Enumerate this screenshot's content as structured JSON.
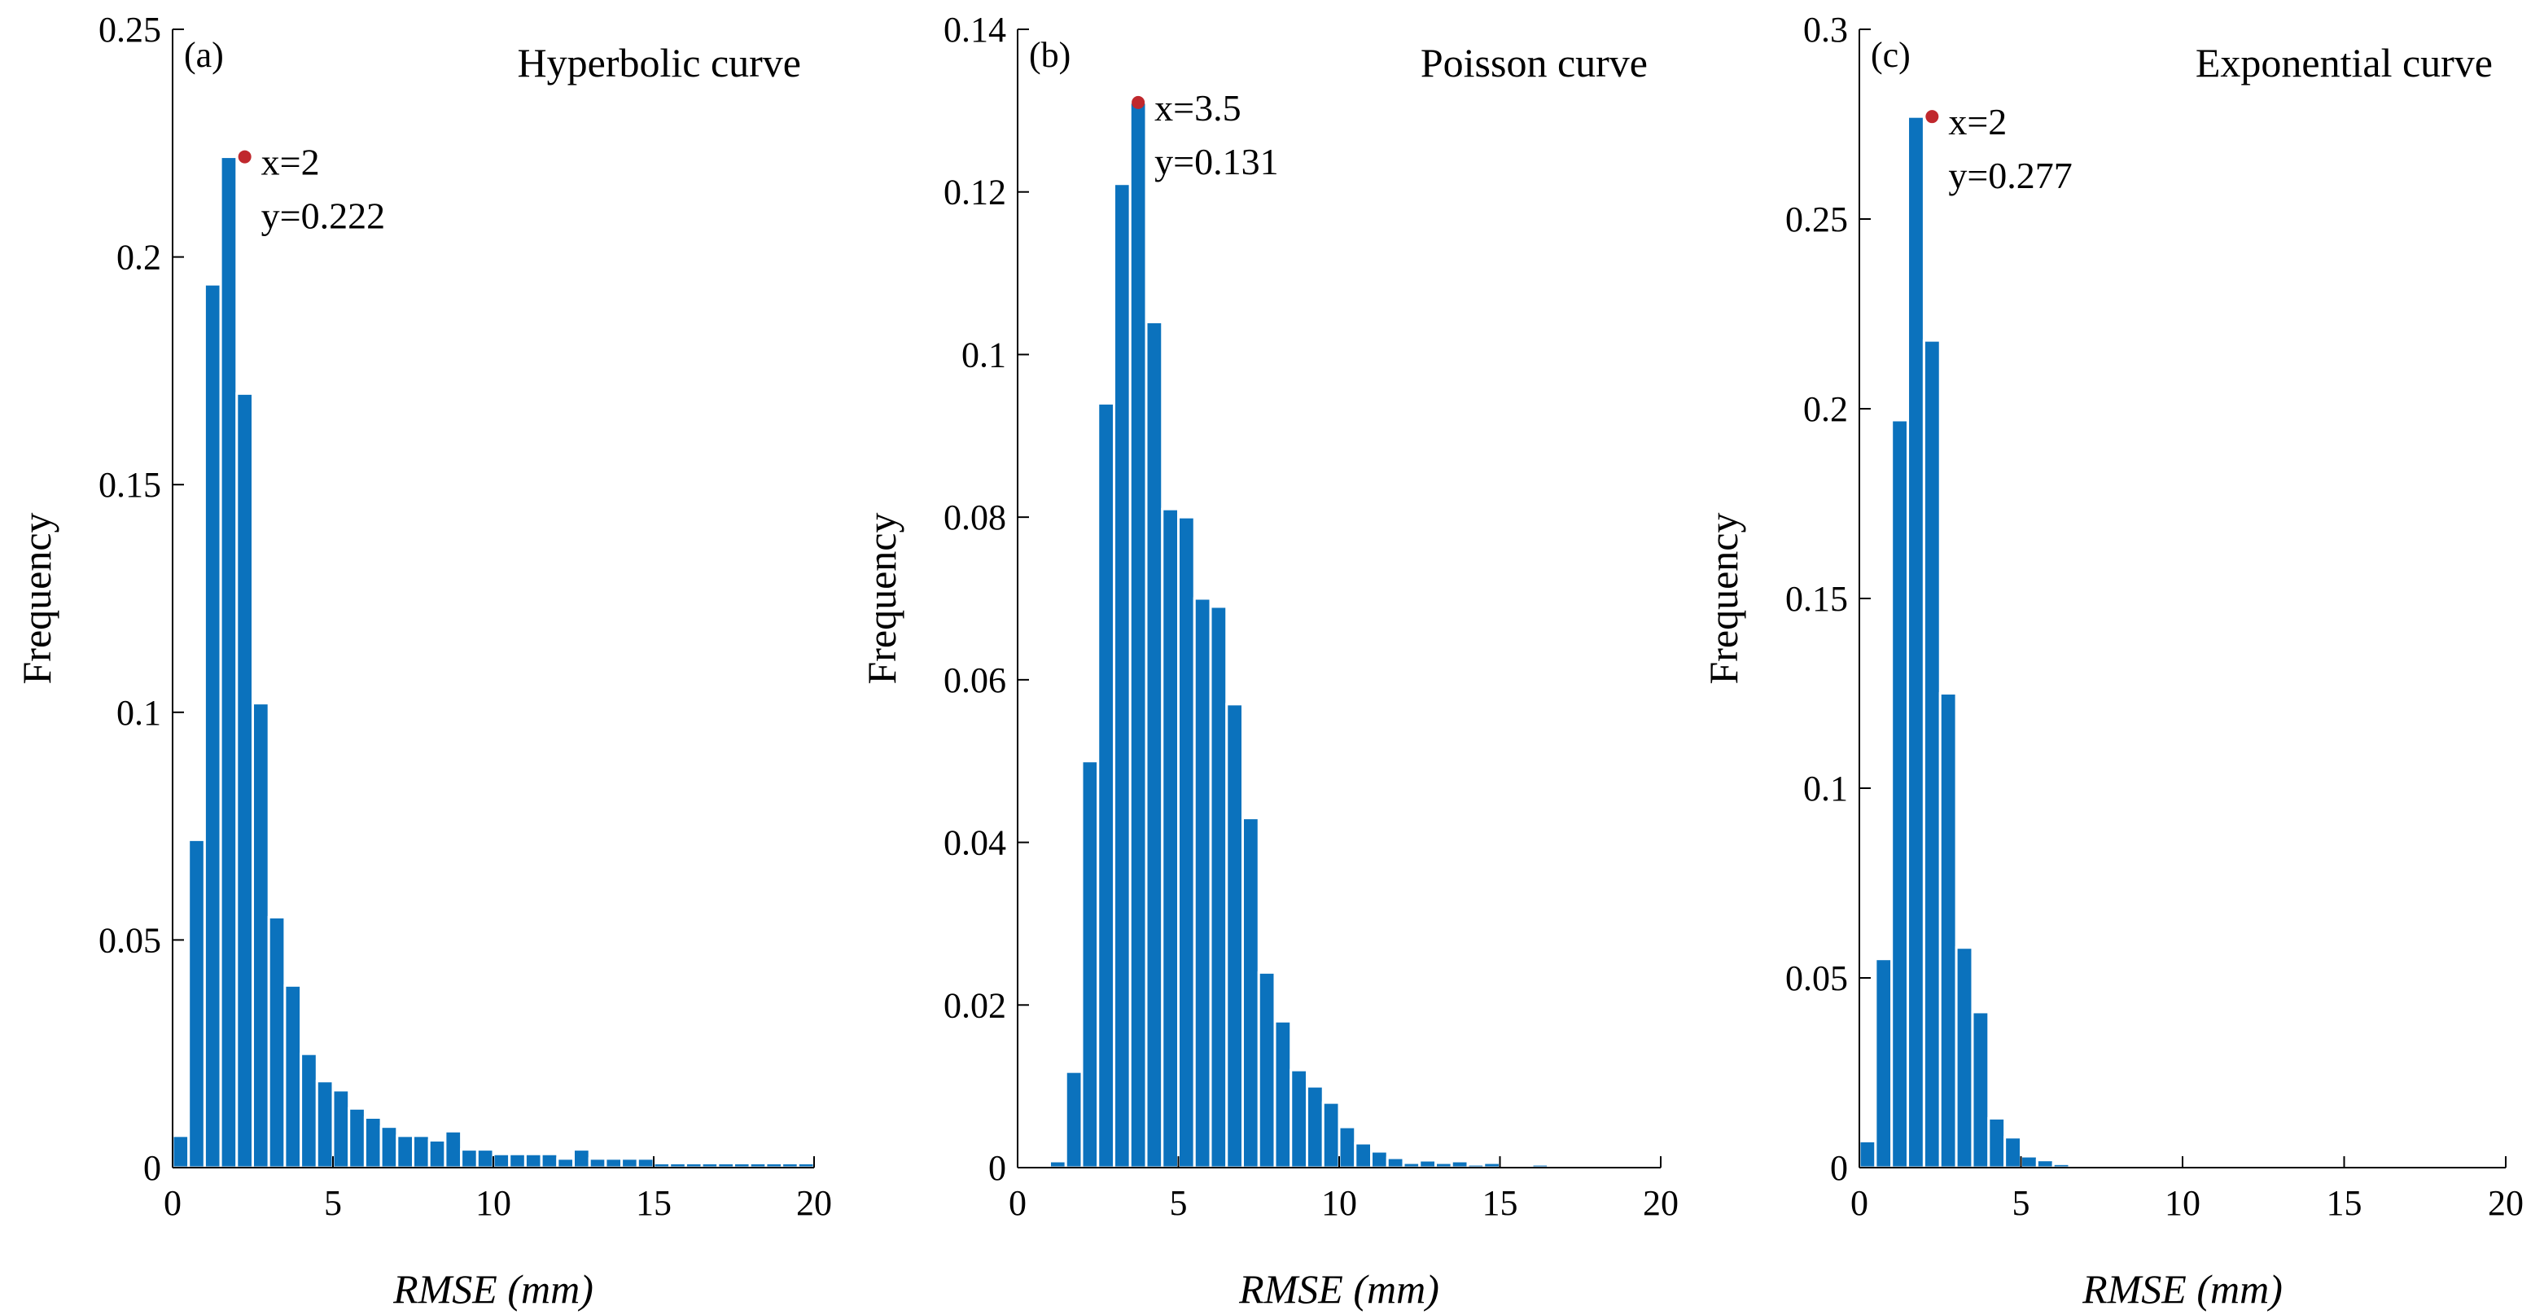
{
  "chart_data": [
    {
      "type": "bar",
      "tag": "(a)",
      "title": "Hyperbolic curve",
      "xlabel": "RMSE (mm)",
      "ylabel": "Frequency",
      "xlim": [
        0,
        20
      ],
      "ylim": [
        0,
        0.25
      ],
      "xticks": [
        "0",
        "5",
        "10",
        "15",
        "20"
      ],
      "yticks": [
        "0",
        "0.05",
        "0.1",
        "0.15",
        "0.2",
        "0.25"
      ],
      "bin_width": 0.5,
      "bin_start": 0,
      "values": [
        0.007,
        0.072,
        0.194,
        0.222,
        0.17,
        0.102,
        0.055,
        0.04,
        0.025,
        0.019,
        0.017,
        0.013,
        0.011,
        0.009,
        0.007,
        0.007,
        0.006,
        0.008,
        0.004,
        0.004,
        0.003,
        0.003,
        0.003,
        0.003,
        0.002,
        0.004,
        0.002,
        0.002,
        0.002,
        0.002,
        0.001,
        0.001,
        0.001,
        0.001,
        0.001,
        0.001,
        0.001,
        0.001,
        0.001,
        0.001
      ],
      "peak": {
        "x": 2,
        "y": 0.222,
        "label_x": "x=2",
        "label_y": "y=0.222"
      }
    },
    {
      "type": "bar",
      "tag": "(b)",
      "title": "Poisson curve",
      "xlabel": "RMSE (mm)",
      "ylabel": "Frequency",
      "xlim": [
        0,
        20
      ],
      "ylim": [
        0,
        0.14
      ],
      "xticks": [
        "0",
        "5",
        "10",
        "15",
        "20"
      ],
      "yticks": [
        "0",
        "0.02",
        "0.04",
        "0.06",
        "0.08",
        "0.1",
        "0.12",
        "0.14"
      ],
      "bin_width": 0.5,
      "bin_start": 0,
      "values": [
        0,
        0.0003,
        0.0008,
        0.0118,
        0.05,
        0.094,
        0.121,
        0.131,
        0.104,
        0.081,
        0.08,
        0.07,
        0.069,
        0.057,
        0.043,
        0.024,
        0.018,
        0.012,
        0.01,
        0.008,
        0.005,
        0.003,
        0.002,
        0.0012,
        0.0006,
        0.0009,
        0.0006,
        0.0008,
        0.0004,
        0.0006,
        0.0003,
        0.0003,
        0.0004,
        0.0002,
        0.0002,
        0.0003,
        0.0002,
        0.0001,
        0.0002,
        0.0001
      ],
      "peak": {
        "x": 3.5,
        "y": 0.131,
        "label_x": "x=3.5",
        "label_y": "y=0.131"
      }
    },
    {
      "type": "bar",
      "tag": "(c)",
      "title": "Exponential curve",
      "xlabel": "RMSE (mm)",
      "ylabel": "Frequency",
      "xlim": [
        0,
        20
      ],
      "ylim": [
        0,
        0.3
      ],
      "xticks": [
        "0",
        "5",
        "10",
        "15",
        "20"
      ],
      "yticks": [
        "0",
        "0.05",
        "0.1",
        "0.15",
        "0.2",
        "0.25",
        "0.3"
      ],
      "bin_width": 0.5,
      "bin_start": 0,
      "values": [
        0.007,
        0.055,
        0.197,
        0.277,
        0.218,
        0.125,
        0.058,
        0.041,
        0.013,
        0.008,
        0.003,
        0.002,
        0.001,
        0.0005,
        0.0006,
        0.0004,
        0.0005,
        0.0003,
        0.0003,
        0.0002,
        0.0003,
        0.0002,
        0.0002,
        0.0002,
        0.0001,
        0.0002,
        0.0001,
        0.0001,
        0.0001,
        0.0001,
        0.0001,
        0.0001,
        0.0001,
        0.0001,
        0.0001,
        0.0001,
        0.0001,
        0.0001,
        0.0001,
        0.0001
      ],
      "peak": {
        "x": 2,
        "y": 0.277,
        "label_x": "x=2",
        "label_y": "y=0.277"
      }
    }
  ],
  "colors": {
    "bar": "#0b72bd",
    "peak": "#c0282d"
  }
}
